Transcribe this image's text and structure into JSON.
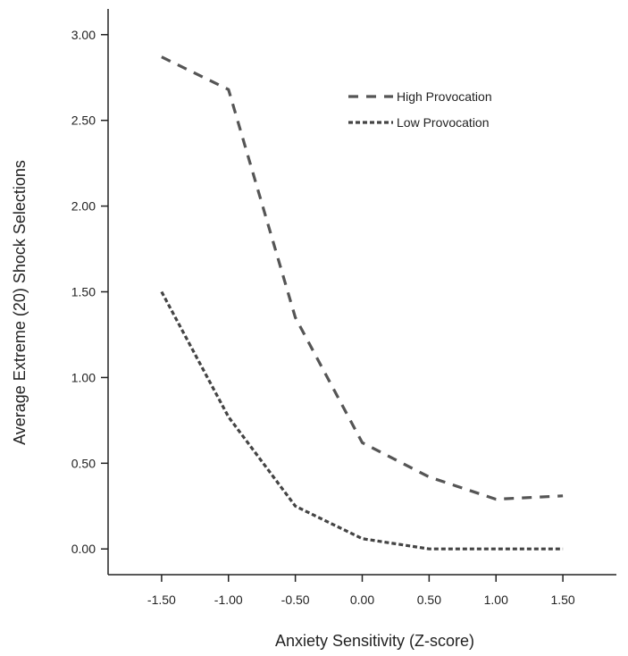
{
  "chart_data": {
    "type": "line",
    "xlabel": "Anxiety Sensitivity (Z-score)",
    "ylabel": "Average Extreme (20) Shock Selections",
    "x_ticks": [
      "-1.50",
      "-1.00",
      "-0.50",
      "0.00",
      "0.50",
      "1.00",
      "1.50"
    ],
    "y_ticks": [
      "0.00",
      "0.50",
      "1.00",
      "1.50",
      "2.00",
      "2.50",
      "3.00"
    ],
    "xlim": [
      -1.9,
      1.9
    ],
    "ylim": [
      -0.15,
      3.15
    ],
    "legend_position": "top-right",
    "series": [
      {
        "name": "High Provocation",
        "style": "long-dash",
        "color": "#555555",
        "x": [
          -1.5,
          -1.0,
          -0.5,
          0.0,
          0.5,
          1.0,
          1.5
        ],
        "y": [
          2.87,
          2.68,
          1.35,
          0.62,
          0.42,
          0.29,
          0.31
        ]
      },
      {
        "name": "Low Provocation",
        "style": "short-dash",
        "color": "#444444",
        "x": [
          -1.5,
          -1.0,
          -0.5,
          0.0,
          0.5,
          1.0,
          1.5
        ],
        "y": [
          1.5,
          0.77,
          0.25,
          0.06,
          0.0,
          0.0,
          0.0
        ]
      }
    ]
  }
}
